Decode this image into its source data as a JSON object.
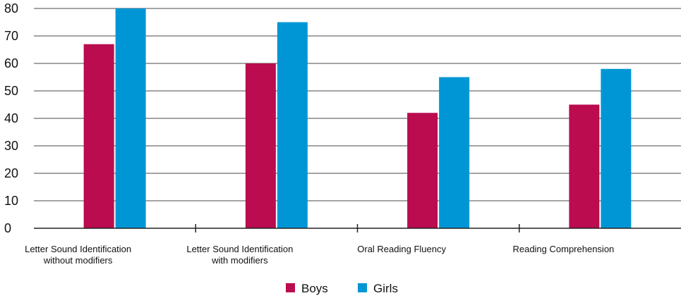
{
  "chart_data": {
    "type": "bar",
    "categories": [
      [
        "Letter Sound Identification",
        "without modifiers"
      ],
      [
        "Letter Sound Identification",
        "with modifiers"
      ],
      [
        "Oral Reading Fluency"
      ],
      [
        "Reading Comprehension"
      ]
    ],
    "series": [
      {
        "name": "Boys",
        "color": "#BA0C4F",
        "values": [
          67,
          60,
          42,
          45
        ]
      },
      {
        "name": "Girls",
        "color": "#0096D6",
        "values": [
          80,
          75,
          55,
          58
        ]
      }
    ],
    "ylim": [
      0,
      80
    ],
    "yticks": [
      0,
      10,
      20,
      30,
      40,
      50,
      60,
      70,
      80
    ],
    "grid": true,
    "legend_position": "bottom-center",
    "title": "",
    "xlabel": "",
    "ylabel": ""
  }
}
